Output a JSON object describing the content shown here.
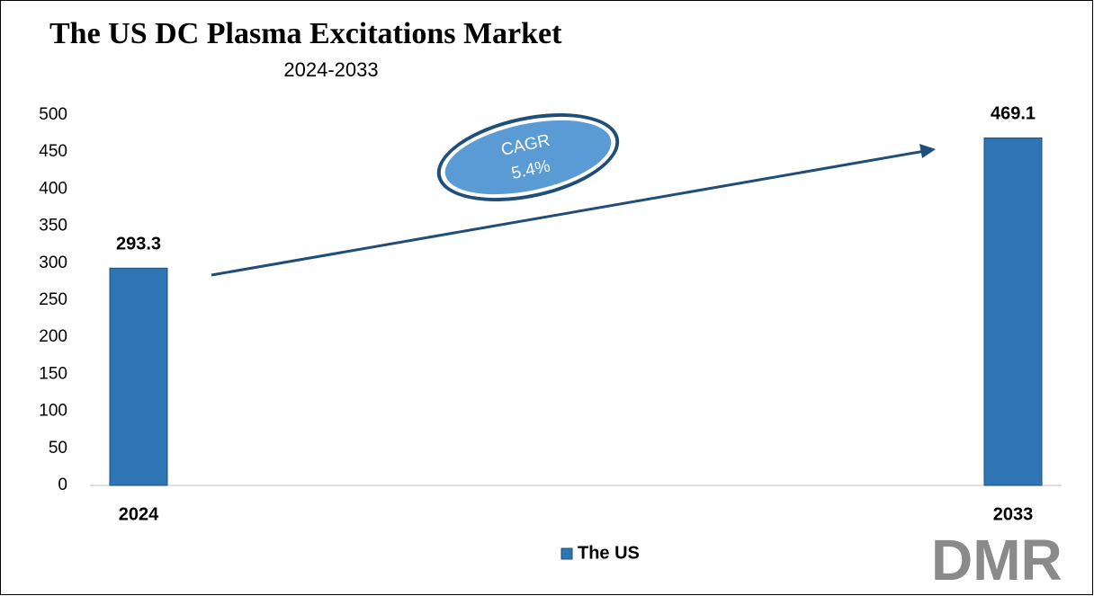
{
  "chart_data": {
    "type": "bar",
    "title": "The US DC Plasma Excitations Market",
    "subtitle": "2024-2033",
    "categories": [
      "2024",
      "2033"
    ],
    "series": [
      {
        "name": "The US",
        "color": "#2e75b6",
        "values": [
          293.3,
          469.1
        ]
      }
    ],
    "ylim": [
      0,
      500
    ],
    "yticks": [
      0,
      50,
      100,
      150,
      200,
      250,
      300,
      350,
      400,
      450,
      500
    ],
    "annotation": {
      "label": "CAGR",
      "value": "5.4%"
    },
    "logo": "DMR"
  }
}
